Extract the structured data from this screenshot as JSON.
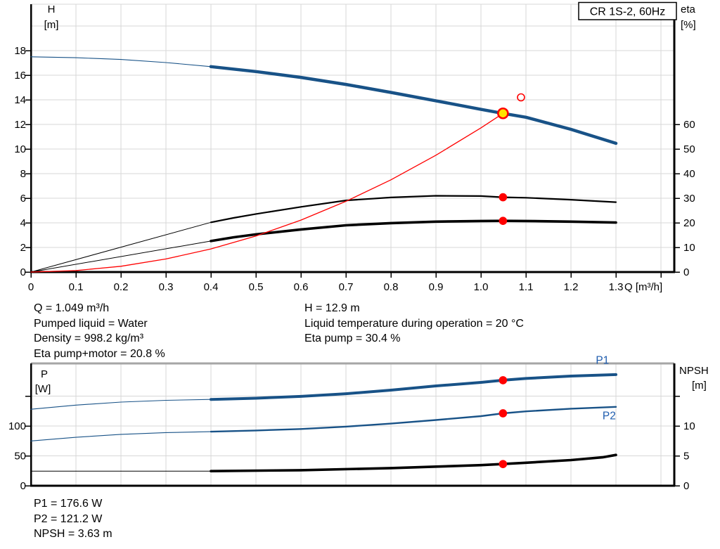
{
  "colors": {
    "curve_blue": "#185287",
    "label_blue": "#1e5cae",
    "red": "#ff0000",
    "yellow": "#ffe400",
    "black": "#000000",
    "grid": "#d7d7d7",
    "border_gray": "#a6a6a6"
  },
  "info_top": {
    "col1": [
      "Q = 1.049 m³/h",
      "Pumped liquid = Water",
      "Density = 998.2 kg/m³",
      "Eta pump+motor = 20.8 %"
    ],
    "col2": [
      "H = 12.9 m",
      "Liquid temperature during operation = 20 °C",
      "Eta pump = 30.4 %"
    ]
  },
  "info_bottom": [
    "P1 = 176.6 W",
    "P2 = 121.2 W",
    "NPSH = 3.63 m"
  ],
  "chart_data": [
    {
      "name": "qh-eta-chart",
      "type": "line",
      "title": "CR 1S-2, 60Hz",
      "border_top": "grid",
      "x_axis": {
        "label": "Q [m³/h]",
        "ticks": [
          0,
          0.1,
          0.2,
          0.3,
          0.4,
          0.5,
          0.6,
          0.7,
          0.8,
          0.9,
          1.0,
          1.1,
          1.2,
          1.3
        ],
        "unlabeled_ticks": [
          1.4
        ]
      },
      "y_left_axis": {
        "label": "H",
        "unit": "[m]",
        "ticks": [
          0,
          2,
          4,
          6,
          8,
          10,
          12,
          14,
          16,
          18
        ],
        "unlabeled_ticks": [],
        "range": [
          0,
          21.8
        ]
      },
      "y_right_axis": {
        "label": "eta",
        "unit": "[%]",
        "ticks": [
          0,
          10,
          20,
          30,
          40,
          50,
          60
        ],
        "unlabeled_ticks": [],
        "range": [
          0,
          108.9
        ]
      },
      "grid_lines": [
        2,
        4,
        6,
        8,
        10,
        12,
        14,
        16,
        18,
        20
      ],
      "series": [
        {
          "name": "head-curve-thin",
          "axis": "left",
          "color": "curve_blue",
          "width": 1.1,
          "points": [
            [
              0,
              17.5
            ],
            [
              0.1,
              17.42
            ],
            [
              0.2,
              17.28
            ],
            [
              0.3,
              17.03
            ],
            [
              0.4,
              16.7
            ]
          ]
        },
        {
          "name": "head-curve",
          "axis": "left",
          "color": "curve_blue",
          "width": 4.5,
          "points": [
            [
              0.4,
              16.7
            ],
            [
              0.5,
              16.3
            ],
            [
              0.6,
              15.82
            ],
            [
              0.7,
              15.25
            ],
            [
              0.8,
              14.6
            ],
            [
              0.9,
              13.92
            ],
            [
              1.0,
              13.22
            ],
            [
              1.049,
              12.9
            ],
            [
              1.1,
              12.58
            ],
            [
              1.2,
              11.6
            ],
            [
              1.3,
              10.46
            ]
          ]
        },
        {
          "name": "eta-pump-curve-thin",
          "axis": "right",
          "color": "black",
          "width": 1,
          "points": [
            [
              0,
              0
            ],
            [
              0.4,
              20.2
            ]
          ]
        },
        {
          "name": "eta-pump-curve",
          "axis": "right",
          "color": "black",
          "width": 2.2,
          "points": [
            [
              0.4,
              20.2
            ],
            [
              0.45,
              22.0
            ],
            [
              0.5,
              23.6
            ],
            [
              0.6,
              26.5
            ],
            [
              0.7,
              29.1
            ],
            [
              0.8,
              30.3
            ],
            [
              0.9,
              31.0
            ],
            [
              1.0,
              30.9
            ],
            [
              1.049,
              30.4
            ],
            [
              1.1,
              30.2
            ],
            [
              1.2,
              29.4
            ],
            [
              1.3,
              28.4
            ]
          ]
        },
        {
          "name": "eta-pump-motor-curve-thin",
          "axis": "right",
          "color": "black",
          "width": 1,
          "points": [
            [
              0,
              0
            ],
            [
              0.4,
              12.6
            ]
          ]
        },
        {
          "name": "eta-pump-motor-curve",
          "axis": "right",
          "color": "black",
          "width": 3.6,
          "points": [
            [
              0.4,
              12.6
            ],
            [
              0.45,
              14.1
            ],
            [
              0.5,
              15.3
            ],
            [
              0.6,
              17.3
            ],
            [
              0.7,
              19.0
            ],
            [
              0.8,
              19.9
            ],
            [
              0.9,
              20.5
            ],
            [
              1.0,
              20.75
            ],
            [
              1.049,
              20.8
            ],
            [
              1.1,
              20.75
            ],
            [
              1.2,
              20.5
            ],
            [
              1.3,
              20.1
            ]
          ]
        },
        {
          "name": "system-curve",
          "axis": "left",
          "color": "red",
          "width": 1.3,
          "points": [
            [
              0,
              0
            ],
            [
              0.1,
              0.12
            ],
            [
              0.2,
              0.47
            ],
            [
              0.3,
              1.06
            ],
            [
              0.4,
              1.88
            ],
            [
              0.5,
              2.93
            ],
            [
              0.6,
              4.22
            ],
            [
              0.7,
              5.75
            ],
            [
              0.8,
              7.5
            ],
            [
              0.9,
              9.5
            ],
            [
              1.0,
              11.72
            ],
            [
              1.049,
              12.9
            ]
          ]
        }
      ],
      "markers": [
        {
          "kind": "duty",
          "axis": "left",
          "q": 1.049,
          "value": 12.9,
          "name": "duty-point-marker"
        },
        {
          "kind": "open",
          "axis": "left",
          "q": 1.089,
          "value": 14.2,
          "name": "requested-duty-marker"
        },
        {
          "kind": "dot",
          "axis": "right",
          "q": 1.049,
          "value": 30.4,
          "name": "eta-pump-duty-marker"
        },
        {
          "kind": "dot",
          "axis": "right",
          "q": 1.049,
          "value": 20.8,
          "name": "eta-pump-motor-duty-marker"
        }
      ],
      "series_labels": []
    },
    {
      "name": "power-npsh-chart",
      "type": "line",
      "title": "",
      "border_top": "gray",
      "x_axis": {
        "label": "",
        "ticks": [],
        "unlabeled_ticks": []
      },
      "y_left_axis": {
        "label": "P",
        "unit": "[W]",
        "ticks": [
          0,
          50,
          100
        ],
        "unlabeled_ticks": [
          150
        ],
        "range": [
          0,
          204.7
        ]
      },
      "y_right_axis": {
        "label": "NPSH",
        "unit": "[m]",
        "ticks": [
          0,
          5,
          10
        ],
        "unlabeled_ticks": [
          15
        ],
        "range": [
          0,
          20.5
        ]
      },
      "grid_lines": [
        50,
        100,
        150
      ],
      "series": [
        {
          "name": "p1-curve-thin",
          "axis": "left",
          "color": "curve_blue",
          "width": 1.1,
          "points": [
            [
              0,
              128
            ],
            [
              0.1,
              135
            ],
            [
              0.2,
              140
            ],
            [
              0.3,
              143
            ],
            [
              0.4,
              144.5
            ]
          ]
        },
        {
          "name": "p1-curve",
          "axis": "left",
          "color": "curve_blue",
          "width": 4,
          "points": [
            [
              0.4,
              144.5
            ],
            [
              0.5,
              146.5
            ],
            [
              0.6,
              149.5
            ],
            [
              0.7,
              154
            ],
            [
              0.8,
              160
            ],
            [
              0.9,
              167
            ],
            [
              1.0,
              173
            ],
            [
              1.049,
              176.6
            ],
            [
              1.1,
              179.5
            ],
            [
              1.2,
              183.5
            ],
            [
              1.3,
              186
            ]
          ]
        },
        {
          "name": "p2-curve-thin",
          "axis": "left",
          "color": "curve_blue",
          "width": 1.1,
          "points": [
            [
              0,
              75
            ],
            [
              0.1,
              81
            ],
            [
              0.2,
              86
            ],
            [
              0.3,
              89
            ],
            [
              0.4,
              90.5
            ]
          ]
        },
        {
          "name": "p2-curve",
          "axis": "left",
          "color": "curve_blue",
          "width": 2.4,
          "points": [
            [
              0.4,
              90.5
            ],
            [
              0.5,
              92.5
            ],
            [
              0.6,
              95
            ],
            [
              0.7,
              99
            ],
            [
              0.8,
              104
            ],
            [
              0.9,
              110
            ],
            [
              1.0,
              116.5
            ],
            [
              1.049,
              121.2
            ],
            [
              1.1,
              124.5
            ],
            [
              1.2,
              129
            ],
            [
              1.3,
              132
            ]
          ]
        },
        {
          "name": "npsh-curve-thin",
          "axis": "right",
          "color": "black",
          "width": 1,
          "points": [
            [
              0,
              2.45
            ],
            [
              0.4,
              2.45
            ]
          ]
        },
        {
          "name": "npsh-curve",
          "axis": "right",
          "color": "black",
          "width": 3.6,
          "points": [
            [
              0.4,
              2.45
            ],
            [
              0.6,
              2.6
            ],
            [
              0.8,
              2.95
            ],
            [
              0.9,
              3.2
            ],
            [
              1.0,
              3.45
            ],
            [
              1.049,
              3.63
            ],
            [
              1.1,
              3.85
            ],
            [
              1.2,
              4.3
            ],
            [
              1.27,
              4.75
            ],
            [
              1.3,
              5.15
            ]
          ]
        }
      ],
      "markers": [
        {
          "kind": "dot",
          "axis": "left",
          "q": 1.049,
          "value": 176.6,
          "name": "p1-duty-marker"
        },
        {
          "kind": "dot",
          "axis": "left",
          "q": 1.049,
          "value": 121.2,
          "name": "p2-duty-marker"
        },
        {
          "kind": "dot",
          "axis": "right",
          "q": 1.049,
          "value": 3.63,
          "name": "npsh-duty-marker"
        }
      ],
      "series_labels": [
        {
          "text": "P1",
          "axis": "left",
          "q": 1.27,
          "value": 204,
          "name": "p1-curve-label"
        },
        {
          "text": "P2",
          "axis": "left",
          "q": 1.285,
          "value": 111,
          "name": "p2-curve-label"
        }
      ]
    }
  ]
}
